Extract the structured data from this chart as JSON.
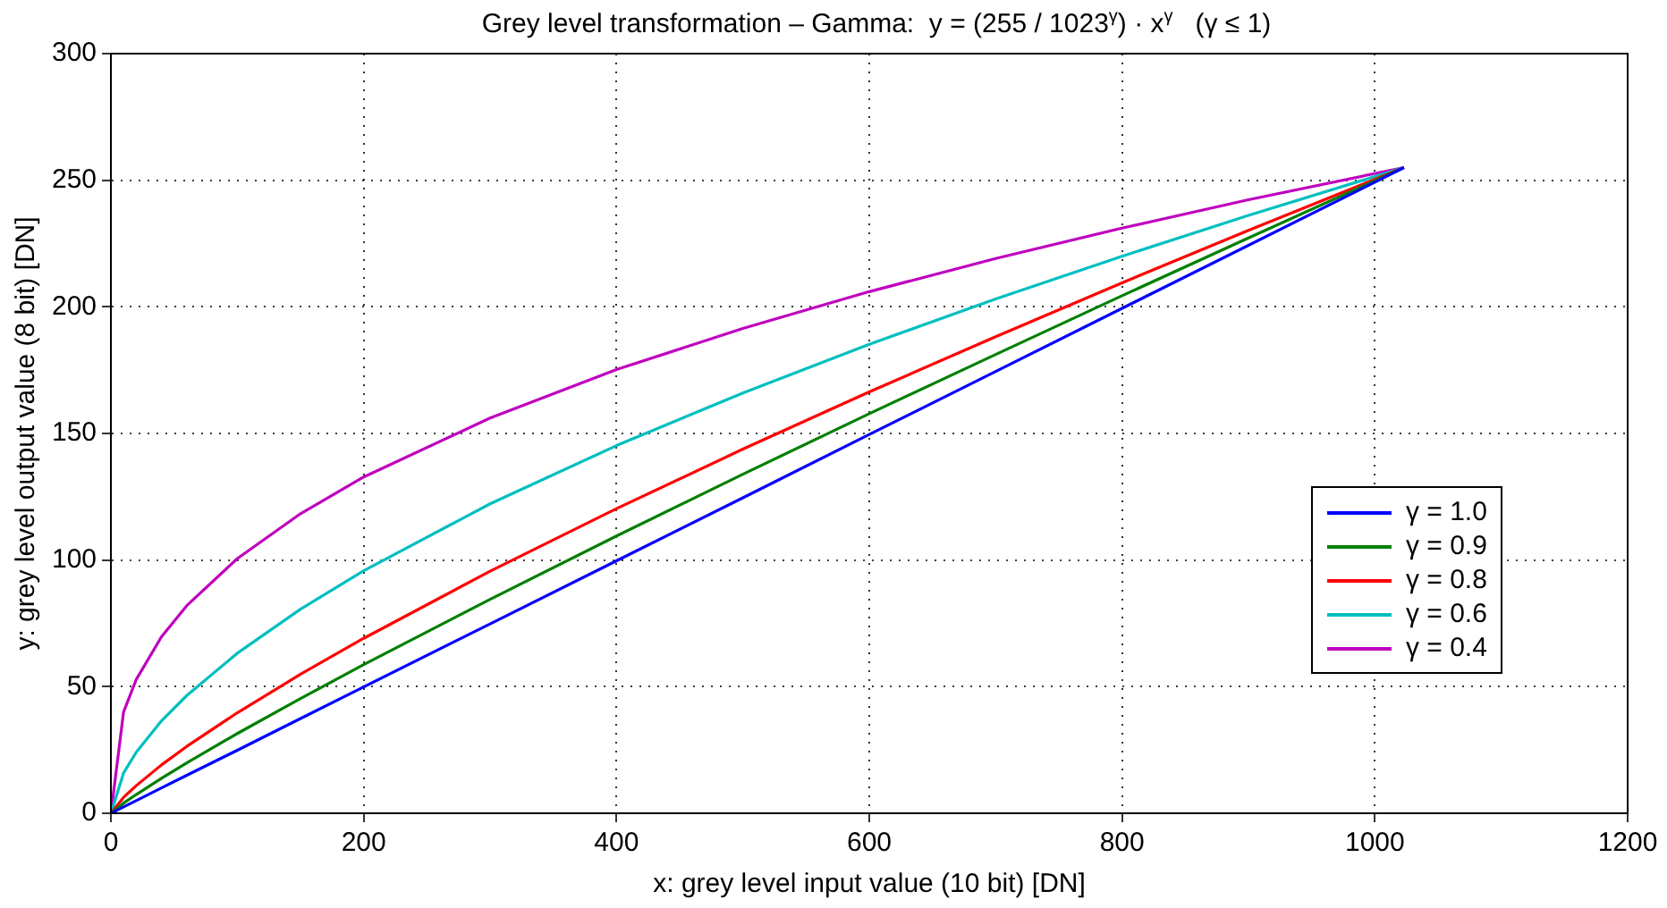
{
  "chart_data": {
    "type": "line",
    "title": "Grey level transformation – Gamma:  y = (255 / 1023$^{γ}$) · x$^{γ}$   (γ ≤ 1)",
    "xlabel": "x: grey level input value (10 bit) [DN]",
    "ylabel": "y: grey level output value (8 bit) [DN]",
    "x": [
      0,
      10,
      20,
      40,
      60,
      100,
      150,
      200,
      300,
      400,
      500,
      600,
      700,
      800,
      900,
      1023
    ],
    "series": [
      {
        "name": "γ = 1.0",
        "color": "#0000ff",
        "values": [
          0,
          2.5,
          5,
          10,
          15,
          24.9,
          37.4,
          49.9,
          74.8,
          99.7,
          124.6,
          149.6,
          174.5,
          199.4,
          224.3,
          255
        ]
      },
      {
        "name": "γ = 0.9",
        "color": "#008000",
        "values": [
          0,
          4.0,
          7.4,
          13.8,
          19.9,
          31.5,
          45.3,
          58.7,
          84.5,
          109.5,
          133.9,
          157.8,
          181.2,
          204.4,
          227.2,
          255
        ]
      },
      {
        "name": "γ = 0.8",
        "color": "#ff0000",
        "values": [
          0,
          6.3,
          10.9,
          19.1,
          26.4,
          39.7,
          54.9,
          69.1,
          95.6,
          120.3,
          143.8,
          166.4,
          188.2,
          209.5,
          230.2,
          255
        ]
      },
      {
        "name": "γ = 0.6",
        "color": "#00bfbf",
        "values": [
          0,
          15.9,
          24.1,
          36.5,
          46.5,
          63.2,
          80.6,
          95.8,
          122.2,
          145.2,
          166.0,
          185.2,
          203.1,
          220.0,
          236.1,
          255
        ]
      },
      {
        "name": "γ = 0.4",
        "color": "#bf00bf",
        "values": [
          0,
          40.0,
          52.8,
          69.7,
          82.0,
          100.6,
          118.3,
          132.8,
          156.1,
          175.2,
          191.5,
          206.0,
          219.1,
          231.1,
          242.3,
          255
        ]
      }
    ],
    "xlim": [
      0,
      1200
    ],
    "xticks": [
      0,
      200,
      400,
      600,
      800,
      1000,
      1200
    ],
    "ylim": [
      0,
      300
    ],
    "yticks": [
      0,
      50,
      100,
      150,
      200,
      250,
      300
    ],
    "grid": true,
    "legend": "right",
    "line_style": "solid",
    "marker": "none"
  }
}
